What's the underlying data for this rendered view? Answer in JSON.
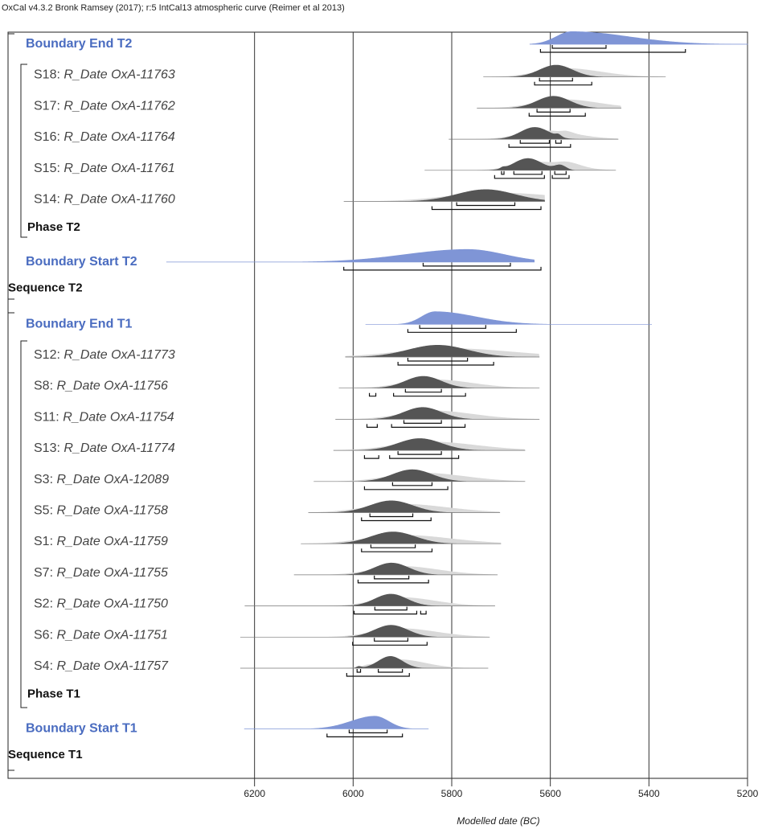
{
  "chart_data": {
    "type": "oxcal",
    "title": "OxCal v4.3.2 Bronk Ramsey (2017); r:5 IntCal13 atmospheric curve (Reimer et al 2013)",
    "x_label": "Modelled date (BC)",
    "xlim": [
      6700,
      5200
    ],
    "xticks": [
      6200,
      6000,
      5800,
      5600,
      5400,
      5200
    ],
    "grid": true,
    "boundary_color": "#7f95d6",
    "date_color": "#555555",
    "prior_color": "#d9d9d9",
    "rows": [
      {
        "kind": "boundary",
        "label": "Boundary End T2",
        "extent": [
          5642,
          5199
        ],
        "peak": 5557,
        "range_68": [
          [
            5596,
            5487
          ]
        ],
        "range_95": [
          [
            5620,
            5326
          ]
        ]
      },
      {
        "kind": "date",
        "name": "S18:",
        "label": "R_Date OxA-11763",
        "extent": [
          5736,
          5366
        ],
        "range_68": [
          [
            5622,
            5555
          ]
        ],
        "range_95": [
          [
            5632,
            5516
          ]
        ]
      },
      {
        "kind": "date",
        "name": "S17:",
        "label": "R_Date OxA-11762",
        "extent": [
          5749,
          5456
        ],
        "range_68": [
          [
            5627,
            5560
          ]
        ],
        "range_95": [
          [
            5643,
            5529
          ]
        ]
      },
      {
        "kind": "date",
        "name": "S16:",
        "label": "R_Date OxA-11764",
        "extent": [
          5806,
          5462
        ],
        "range_68": [
          [
            5661,
            5602
          ],
          [
            5589,
            5578
          ]
        ],
        "range_95": [
          [
            5684,
            5559
          ]
        ]
      },
      {
        "kind": "date",
        "name": "S15:",
        "label": "R_Date OxA-11761",
        "extent": [
          5855,
          5467
        ],
        "range_68": [
          [
            5699,
            5694
          ],
          [
            5674,
            5617
          ],
          [
            5591,
            5568
          ]
        ],
        "range_95": [
          [
            5713,
            5612
          ],
          [
            5596,
            5562
          ]
        ]
      },
      {
        "kind": "date",
        "name": "S14:",
        "label": "R_Date OxA-11760",
        "extent": [
          6019,
          5611
        ],
        "range_68": [
          [
            5790,
            5672
          ]
        ],
        "range_95": [
          [
            5840,
            5619
          ]
        ]
      },
      {
        "kind": "phase",
        "label": "Phase T2"
      },
      {
        "kind": "boundary",
        "label": "Boundary Start T2",
        "extent": [
          6379,
          5632
        ],
        "peak": 5768,
        "range_68": [
          [
            5858,
            5681
          ]
        ],
        "range_95": [
          [
            6019,
            5619
          ]
        ]
      },
      {
        "kind": "sequence",
        "label": "Sequence T2"
      },
      {
        "kind": "boundary",
        "label": "Boundary End T1",
        "extent": [
          5975,
          5394
        ],
        "peak": 5834,
        "range_68": [
          [
            5865,
            5731
          ]
        ],
        "range_95": [
          [
            5889,
            5669
          ]
        ]
      },
      {
        "kind": "date",
        "name": "S12:",
        "label": "R_Date OxA-11773",
        "extent": [
          6016,
          5622
        ],
        "range_68": [
          [
            5889,
            5768
          ]
        ],
        "range_95": [
          [
            5909,
            5715
          ]
        ]
      },
      {
        "kind": "date",
        "name": "S8:",
        "label": "R_Date OxA-11756",
        "extent": [
          6029,
          5622
        ],
        "range_68": [
          [
            5894,
            5821
          ]
        ],
        "range_95": [
          [
            5967,
            5954
          ],
          [
            5918,
            5772
          ]
        ]
      },
      {
        "kind": "date",
        "name": "S11:",
        "label": "R_Date OxA-11754",
        "extent": [
          6036,
          5622
        ],
        "range_68": [
          [
            5897,
            5821
          ]
        ],
        "range_95": [
          [
            5972,
            5951
          ],
          [
            5922,
            5773
          ]
        ]
      },
      {
        "kind": "date",
        "name": "S13:",
        "label": "R_Date OxA-11774",
        "extent": [
          6040,
          5651
        ],
        "range_68": [
          [
            5909,
            5821
          ]
        ],
        "range_95": [
          [
            5977,
            5948
          ],
          [
            5926,
            5786
          ]
        ]
      },
      {
        "kind": "date",
        "name": "S3:",
        "label": "R_Date OxA-12089",
        "extent": [
          6080,
          5651
        ],
        "range_68": [
          [
            5920,
            5840
          ]
        ],
        "range_95": [
          [
            5977,
            5808
          ]
        ]
      },
      {
        "kind": "date",
        "name": "S5:",
        "label": "R_Date OxA-11758",
        "extent": [
          6091,
          5702
        ],
        "range_68": [
          [
            5966,
            5879
          ]
        ],
        "range_95": [
          [
            5983,
            5842
          ]
        ]
      },
      {
        "kind": "date",
        "name": "S1:",
        "label": "R_Date OxA-11759",
        "extent": [
          6106,
          5700
        ],
        "range_68": [
          [
            5964,
            5874
          ]
        ],
        "range_95": [
          [
            5983,
            5840
          ]
        ]
      },
      {
        "kind": "date",
        "name": "S7:",
        "label": "R_Date OxA-11755",
        "extent": [
          6120,
          5707
        ],
        "range_68": [
          [
            5957,
            5887
          ]
        ],
        "range_95": [
          [
            5990,
            5847
          ]
        ]
      },
      {
        "kind": "date",
        "name": "S2:",
        "label": "R_Date OxA-11750",
        "extent": [
          6220,
          5712
        ],
        "range_68": [
          [
            5956,
            5891
          ]
        ],
        "range_95": [
          [
            5998,
            5871
          ],
          [
            5863,
            5852
          ]
        ]
      },
      {
        "kind": "date",
        "name": "S6:",
        "label": "R_Date OxA-11751",
        "extent": [
          6229,
          5723
        ],
        "range_68": [
          [
            5957,
            5889
          ]
        ],
        "range_95": [
          [
            6001,
            5850
          ]
        ]
      },
      {
        "kind": "date",
        "name": "S4:",
        "label": "R_Date OxA-11757",
        "extent": [
          6229,
          5726
        ],
        "range_68": [
          [
            5992,
            5985
          ],
          [
            5949,
            5900
          ]
        ],
        "range_95": [
          [
            6013,
            5886
          ]
        ]
      },
      {
        "kind": "phase",
        "label": "Phase T1"
      },
      {
        "kind": "boundary",
        "label": "Boundary Start T1",
        "extent": [
          6221,
          5847
        ],
        "peak": 5956,
        "range_68": [
          [
            6008,
            5931
          ]
        ],
        "range_95": [
          [
            6053,
            5900
          ]
        ]
      },
      {
        "kind": "sequence",
        "label": "Sequence T1"
      }
    ]
  }
}
